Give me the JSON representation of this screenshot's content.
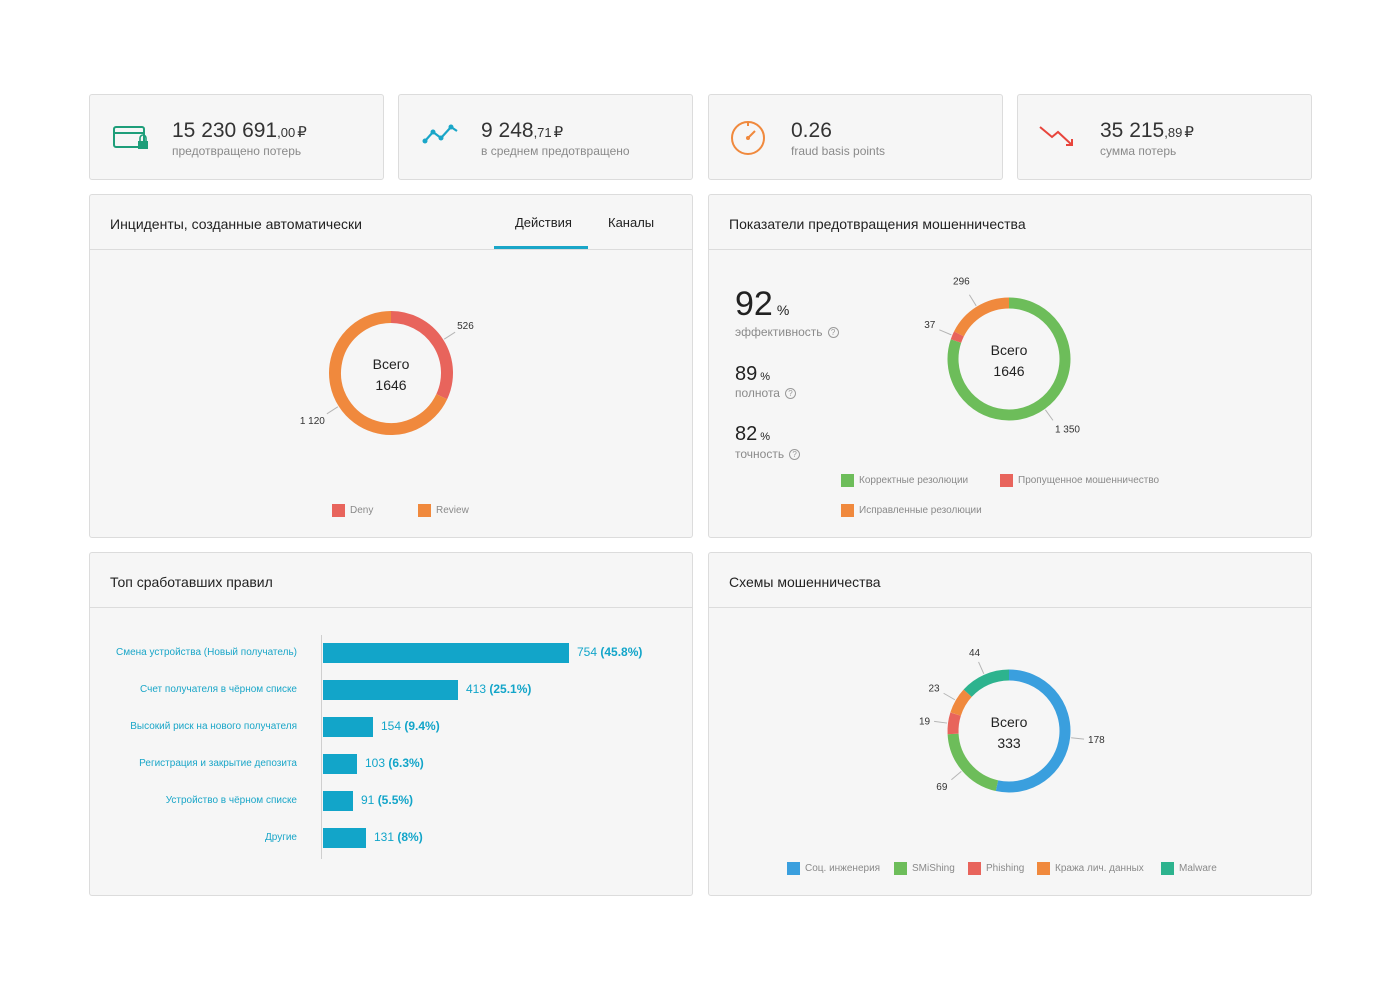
{
  "kpis": [
    {
      "value_main": "15 230 691",
      "value_dec": ",00",
      "currency": "₽",
      "label": "предотвращено потерь",
      "icon": "wallet-lock-icon",
      "color": "#1e9e7a"
    },
    {
      "value_main": "9 248",
      "value_dec": ",71",
      "currency": "₽",
      "label": "в среднем предотвращено",
      "icon": "trend-line-icon",
      "color": "#1aa6c8"
    },
    {
      "value_main": "0.26",
      "value_dec": "",
      "currency": "",
      "label": "fraud basis points",
      "icon": "gauge-icon",
      "color": "#f0893d"
    },
    {
      "value_main": "35 215",
      "value_dec": ",89",
      "currency": "₽",
      "label": "сумма потерь",
      "icon": "trend-down-icon",
      "color": "#e8453c"
    }
  ],
  "incidents": {
    "title": "Инциденты, созданные автоматически",
    "tabs": [
      {
        "label": "Действия",
        "active": true
      },
      {
        "label": "Каналы",
        "active": false
      }
    ],
    "total_label": "Всего",
    "total": "1646",
    "segments": [
      {
        "name": "Deny",
        "value": 526,
        "label": "526",
        "color": "#e8645c"
      },
      {
        "name": "Review",
        "value": 1120,
        "label": "1 120",
        "color": "#f0893d"
      }
    ],
    "legend": [
      "Deny",
      "Review"
    ]
  },
  "prevention": {
    "title": "Показатели предотвращения мошенничества",
    "efficiency": {
      "value": "92",
      "unit": "%",
      "label": "эффективность"
    },
    "completeness": {
      "value": "89",
      "unit": "%",
      "label": "полнота"
    },
    "precision": {
      "value": "82",
      "unit": "%",
      "label": "точность"
    },
    "total_label": "Всего",
    "total": "1646",
    "segments": [
      {
        "name": "Корректные резолюции",
        "value": 1350,
        "label": "1 350",
        "color": "#6dbd5a"
      },
      {
        "name": "Пропущенное мошенничество",
        "value": 37,
        "label": "37",
        "color": "#e8645c"
      },
      {
        "name": "Исправленные резолюции",
        "value": 296,
        "label": "296",
        "color": "#f0893d"
      }
    ],
    "legend": [
      "Корректные резолюции",
      "Пропущенное мошенничество",
      "Исправленные резолюции"
    ]
  },
  "top_rules": {
    "title": "Топ сработавших правил",
    "rules": [
      {
        "label": "Смена устройства (Новый получатель)",
        "count": "754",
        "pct": "(45.8%)",
        "value": 754
      },
      {
        "label": "Счет получателя в чёрном списке",
        "count": "413",
        "pct": "(25.1%)",
        "value": 413
      },
      {
        "label": "Высокий риск на нового получателя",
        "count": "154",
        "pct": "(9.4%)",
        "value": 154
      },
      {
        "label": "Регистрация и закрытие депозита",
        "count": "103",
        "pct": "(6.3%)",
        "value": 103
      },
      {
        "label": "Устройство в чёрном списке",
        "count": "91",
        "pct": "(5.5%)",
        "value": 91
      },
      {
        "label": "Другие",
        "count": "131",
        "pct": "(8%)",
        "value": 131
      }
    ]
  },
  "schemes": {
    "title": "Схемы мошенничества",
    "total_label": "Всего",
    "total": "333",
    "segments": [
      {
        "name": "Соц. инженерия",
        "value": 178,
        "label": "178",
        "color": "#3a9fde"
      },
      {
        "name": "SMiShing",
        "value": 69,
        "label": "69",
        "color": "#6dbd5a"
      },
      {
        "name": "Phishing",
        "value": 19,
        "label": "19",
        "color": "#e8645c"
      },
      {
        "name": "Кража лич. данных",
        "value": 23,
        "label": "23",
        "color": "#f0893d"
      },
      {
        "name": "Malware",
        "value": 44,
        "label": "44",
        "color": "#2db38e"
      }
    ],
    "legend": [
      "Соц. инженерия",
      "SMiShing",
      "Phishing",
      "Кража лич. данных",
      "Malware"
    ]
  }
}
